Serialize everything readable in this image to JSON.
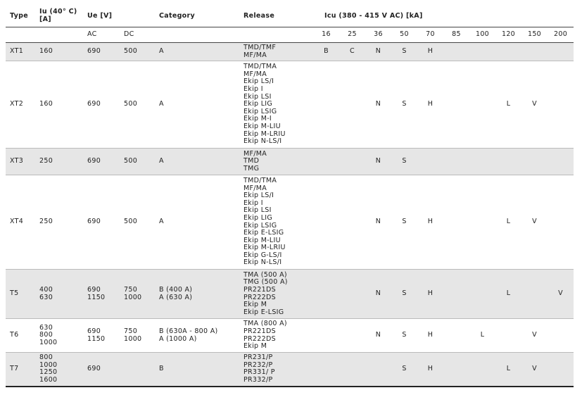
{
  "header": {
    "type": "Type",
    "iu": [
      "Iu (40° C)",
      "[A]"
    ],
    "ue": "Ue [V]",
    "category": "Category",
    "release": "Release",
    "icu": "Icu (380 - 415 V AC) [kA]"
  },
  "subheader": {
    "ue": [
      "AC",
      "DC"
    ],
    "icu": [
      "16",
      "25",
      "36",
      "50",
      "70",
      "85",
      "100",
      "120",
      "150",
      "200"
    ]
  },
  "rows": [
    {
      "type": "XT1",
      "iu": [
        "160"
      ],
      "ac": [
        "690"
      ],
      "dc": [
        "500"
      ],
      "category": [
        "A"
      ],
      "release": [
        "TMD/TMF",
        "MF/MA"
      ],
      "icu": [
        "B",
        "C",
        "N",
        "S",
        "H",
        null,
        null,
        null,
        null,
        null
      ]
    },
    {
      "type": "XT2",
      "iu": [
        "160"
      ],
      "ac": [
        "690"
      ],
      "dc": [
        "500"
      ],
      "category": [
        "A"
      ],
      "release": [
        "TMD/TMA",
        "MF/MA",
        "Ekip LS/I",
        "Ekip I",
        "Ekip LSI",
        "Ekip LIG",
        "Ekip LSIG",
        "Ekip M-I",
        "Ekip M-LIU",
        "Ekip M-LRIU",
        "Ekip N-LS/I"
      ],
      "icu": [
        null,
        null,
        "N",
        "S",
        "H",
        null,
        null,
        "L",
        "V",
        null
      ]
    },
    {
      "type": "XT3",
      "iu": [
        "250"
      ],
      "ac": [
        "690"
      ],
      "dc": [
        "500"
      ],
      "category": [
        "A"
      ],
      "release": [
        "MF/MA",
        "TMD",
        "TMG"
      ],
      "icu": [
        null,
        null,
        "N",
        "S",
        null,
        null,
        null,
        null,
        null,
        null
      ]
    },
    {
      "type": "XT4",
      "iu": [
        "250"
      ],
      "ac": [
        "690"
      ],
      "dc": [
        "500"
      ],
      "category": [
        "A"
      ],
      "release": [
        "TMD/TMA",
        "MF/MA",
        "Ekip LS/I",
        "Ekip I",
        "Ekip LSI",
        "Ekip LIG",
        "Ekip LSIG",
        "Ekip E-LSIG",
        "Ekip M-LIU",
        "Ekip M-LRIU",
        "Ekip G-LS/I",
        "Ekip N-LS/I"
      ],
      "icu": [
        null,
        null,
        "N",
        "S",
        "H",
        null,
        null,
        "L",
        "V",
        null
      ]
    },
    {
      "type": "T5",
      "iu": [
        "400",
        "630"
      ],
      "ac": [
        "690",
        "1150"
      ],
      "dc": [
        "750",
        "1000"
      ],
      "category": [
        "B (400 A)",
        "A (630 A)"
      ],
      "release": [
        "TMA (500 A)",
        "TMG (500 A)",
        "PR221DS",
        "PR222DS",
        "Ekip M",
        "Ekip E-LSIG"
      ],
      "icu": [
        null,
        null,
        "N",
        "S",
        "H",
        null,
        null,
        "L",
        null,
        "V"
      ]
    },
    {
      "type": "T6",
      "iu": [
        "630",
        "800",
        "1000"
      ],
      "ac": [
        "690",
        "1150"
      ],
      "dc": [
        "750",
        "1000"
      ],
      "category": [
        "B (630A - 800 A)",
        "A (1000 A)"
      ],
      "release": [
        "TMA (800 A)",
        "PR221DS",
        "PR222DS",
        "Ekip M"
      ],
      "icu": [
        null,
        null,
        "N",
        "S",
        "H",
        null,
        "L",
        null,
        "V",
        null
      ]
    },
    {
      "type": "T7",
      "iu": [
        "800",
        "1000",
        "1250",
        "1600"
      ],
      "ac": [
        "690"
      ],
      "dc": null,
      "category": [
        "B"
      ],
      "release": [
        "PR231/P",
        "PR232/P",
        "PR331/ P",
        "PR332/P"
      ],
      "icu": [
        null,
        null,
        null,
        "S",
        "H",
        null,
        null,
        "L",
        "V",
        null
      ]
    }
  ]
}
